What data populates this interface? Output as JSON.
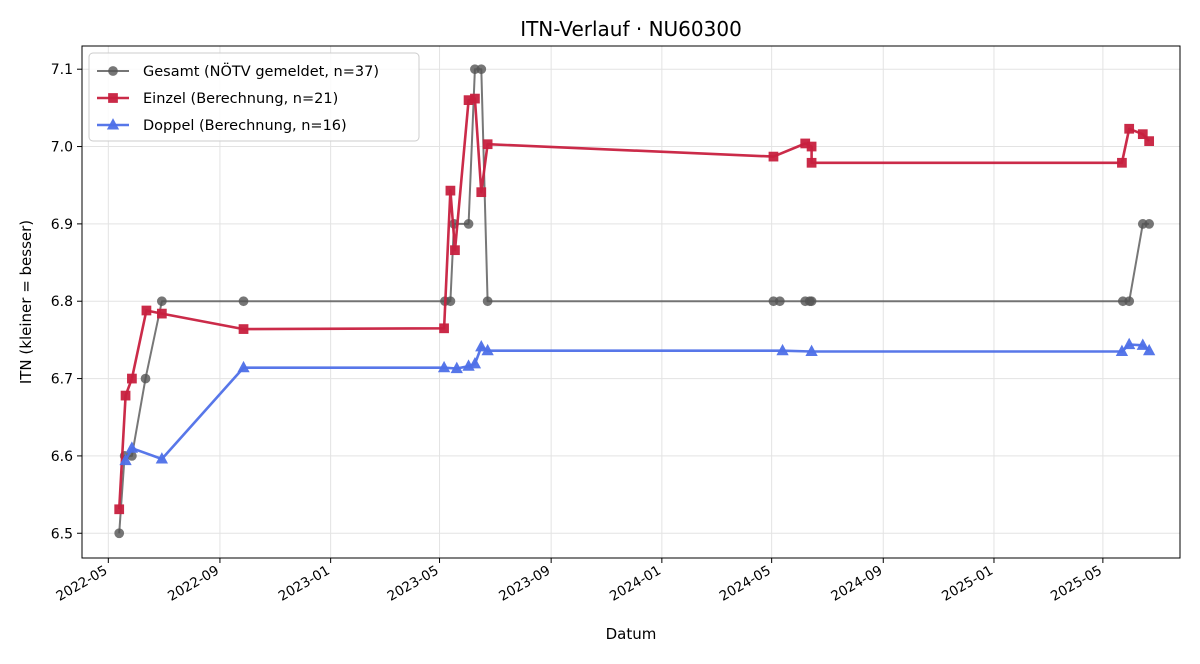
{
  "chart_data": {
    "type": "line",
    "title": "ITN-Verlauf · NU60300",
    "xlabel": "Datum",
    "ylabel": "ITN  (kleiner = besser)",
    "xlim": [
      "2022-04-02",
      "2025-07-25"
    ],
    "ylim": [
      6.468,
      7.13
    ],
    "x_ticks": [
      "2022-05",
      "2022-09",
      "2023-01",
      "2023-05",
      "2023-09",
      "2024-01",
      "2024-05",
      "2024-09",
      "2025-01",
      "2025-05"
    ],
    "y_ticks": [
      "6.5",
      "6.6",
      "6.7",
      "6.8",
      "6.9",
      "7.0",
      "7.1"
    ],
    "grid": true,
    "legend_position": "top-left",
    "series": [
      {
        "name": "Gesamt (NÖTV gemeldet, n=37)",
        "color": "#555555",
        "marker": "circle",
        "points": [
          [
            "2022-05-13",
            6.5
          ],
          [
            "2022-05-19",
            6.6
          ],
          [
            "2022-05-27",
            6.6
          ],
          [
            "2022-06-11",
            6.7
          ],
          [
            "2022-06-29",
            6.8
          ],
          [
            "2022-09-27",
            6.8
          ],
          [
            "2023-05-07",
            6.8
          ],
          [
            "2023-05-13",
            6.8
          ],
          [
            "2023-05-17",
            6.9
          ],
          [
            "2023-06-02",
            6.9
          ],
          [
            "2023-06-09",
            7.1
          ],
          [
            "2023-06-16",
            7.1
          ],
          [
            "2023-06-23",
            6.8
          ],
          [
            "2024-05-03",
            6.8
          ],
          [
            "2024-05-10",
            6.8
          ],
          [
            "2024-06-07",
            6.8
          ],
          [
            "2024-06-12",
            6.8
          ],
          [
            "2024-06-14",
            6.8
          ],
          [
            "2025-05-23",
            6.8
          ],
          [
            "2025-05-30",
            6.8
          ],
          [
            "2025-06-14",
            6.9
          ],
          [
            "2025-06-21",
            6.9
          ]
        ]
      },
      {
        "name": "Einzel (Berechnung, n=21)",
        "color": "#c8203f",
        "marker": "square",
        "points": [
          [
            "2022-05-13",
            6.531
          ],
          [
            "2022-05-20",
            6.678
          ],
          [
            "2022-05-27",
            6.7
          ],
          [
            "2022-06-12",
            6.788
          ],
          [
            "2022-06-29",
            6.784
          ],
          [
            "2022-09-27",
            6.764
          ],
          [
            "2023-05-06",
            6.765
          ],
          [
            "2023-05-13",
            6.943
          ],
          [
            "2023-05-18",
            6.866
          ],
          [
            "2023-06-02",
            7.06
          ],
          [
            "2023-06-09",
            7.062
          ],
          [
            "2023-06-16",
            6.941
          ],
          [
            "2023-06-23",
            7.003
          ],
          [
            "2024-05-03",
            6.987
          ],
          [
            "2024-06-07",
            7.004
          ],
          [
            "2024-06-14",
            7.0
          ],
          [
            "2024-06-14",
            6.979
          ],
          [
            "2025-05-22",
            6.979
          ],
          [
            "2025-05-30",
            7.023
          ],
          [
            "2025-06-14",
            7.016
          ],
          [
            "2025-06-21",
            7.007
          ]
        ]
      },
      {
        "name": "Doppel (Berechnung, n=16)",
        "color": "#4f70e8",
        "marker": "triangle",
        "points": [
          [
            "2022-05-20",
            6.594
          ],
          [
            "2022-05-27",
            6.61
          ],
          [
            "2022-06-29",
            6.596
          ],
          [
            "2022-09-27",
            6.714
          ],
          [
            "2023-05-06",
            6.714
          ],
          [
            "2023-05-20",
            6.713
          ],
          [
            "2023-06-02",
            6.716
          ],
          [
            "2023-06-09",
            6.719
          ],
          [
            "2023-06-16",
            6.741
          ],
          [
            "2023-06-23",
            6.736
          ],
          [
            "2024-05-13",
            6.736
          ],
          [
            "2024-06-14",
            6.735
          ],
          [
            "2025-05-22",
            6.735
          ],
          [
            "2025-05-30",
            6.744
          ],
          [
            "2025-06-14",
            6.743
          ],
          [
            "2025-06-21",
            6.736
          ]
        ]
      }
    ]
  }
}
